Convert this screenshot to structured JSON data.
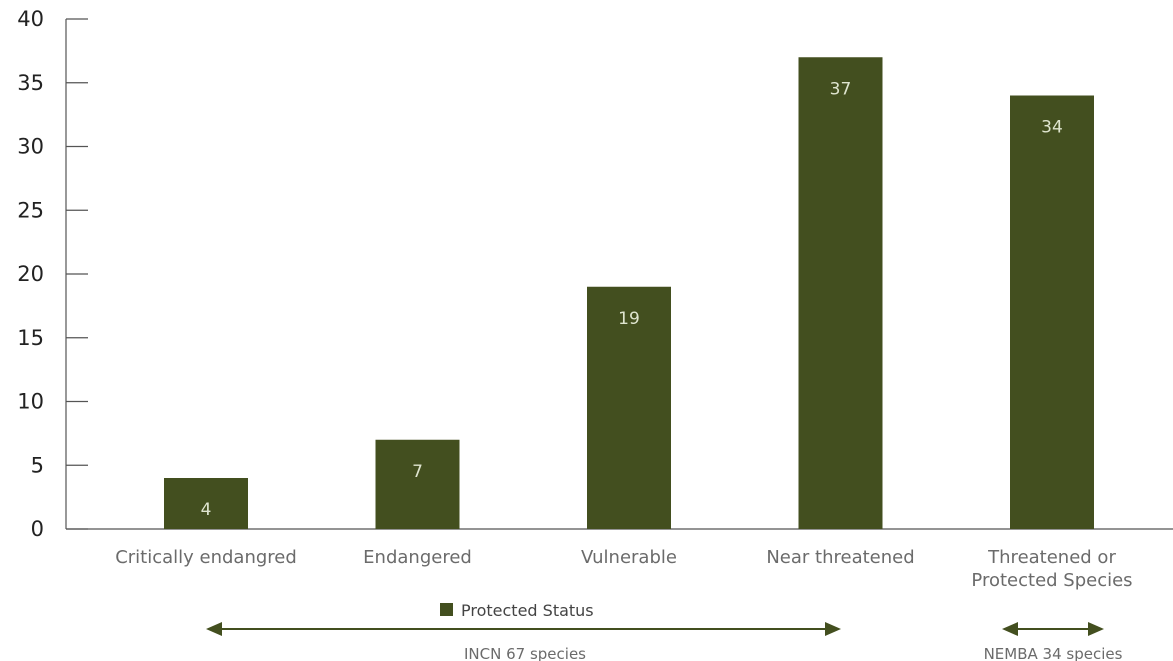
{
  "chart_data": {
    "type": "bar",
    "categories": [
      "Critically endangred",
      "Endangered",
      "Vulnerable",
      "Near threatened",
      "Threatened or Protected Species"
    ],
    "category_lines": [
      [
        "Critically endangred"
      ],
      [
        "Endangered"
      ],
      [
        "Vulnerable"
      ],
      [
        "Near threatened"
      ],
      [
        "Threatened or",
        "Protected Species"
      ]
    ],
    "series": [
      {
        "name": "Protected Status",
        "values": [
          4,
          7,
          19,
          37,
          34
        ]
      }
    ],
    "data_labels": [
      "4",
      "7",
      "19",
      "37",
      "34"
    ],
    "ylim": [
      0,
      40
    ],
    "yticks": [
      0,
      5,
      10,
      15,
      20,
      25,
      30,
      35,
      40
    ],
    "ytick_labels": [
      "0",
      "5",
      "10",
      "15",
      "20",
      "25",
      "30",
      "35",
      "40"
    ],
    "grid": false,
    "legend_position": "bottom-center",
    "colors": {
      "bar": "#434f1f",
      "data_label": "#dfe5cf",
      "axis": "#555555",
      "bracket": "#434f1f"
    },
    "brackets": [
      {
        "label": "INCN 67 species",
        "from_category": 0,
        "to_category": 3
      },
      {
        "label": "NEMBA 34 species",
        "from_category": 4,
        "to_category": 4
      }
    ]
  }
}
